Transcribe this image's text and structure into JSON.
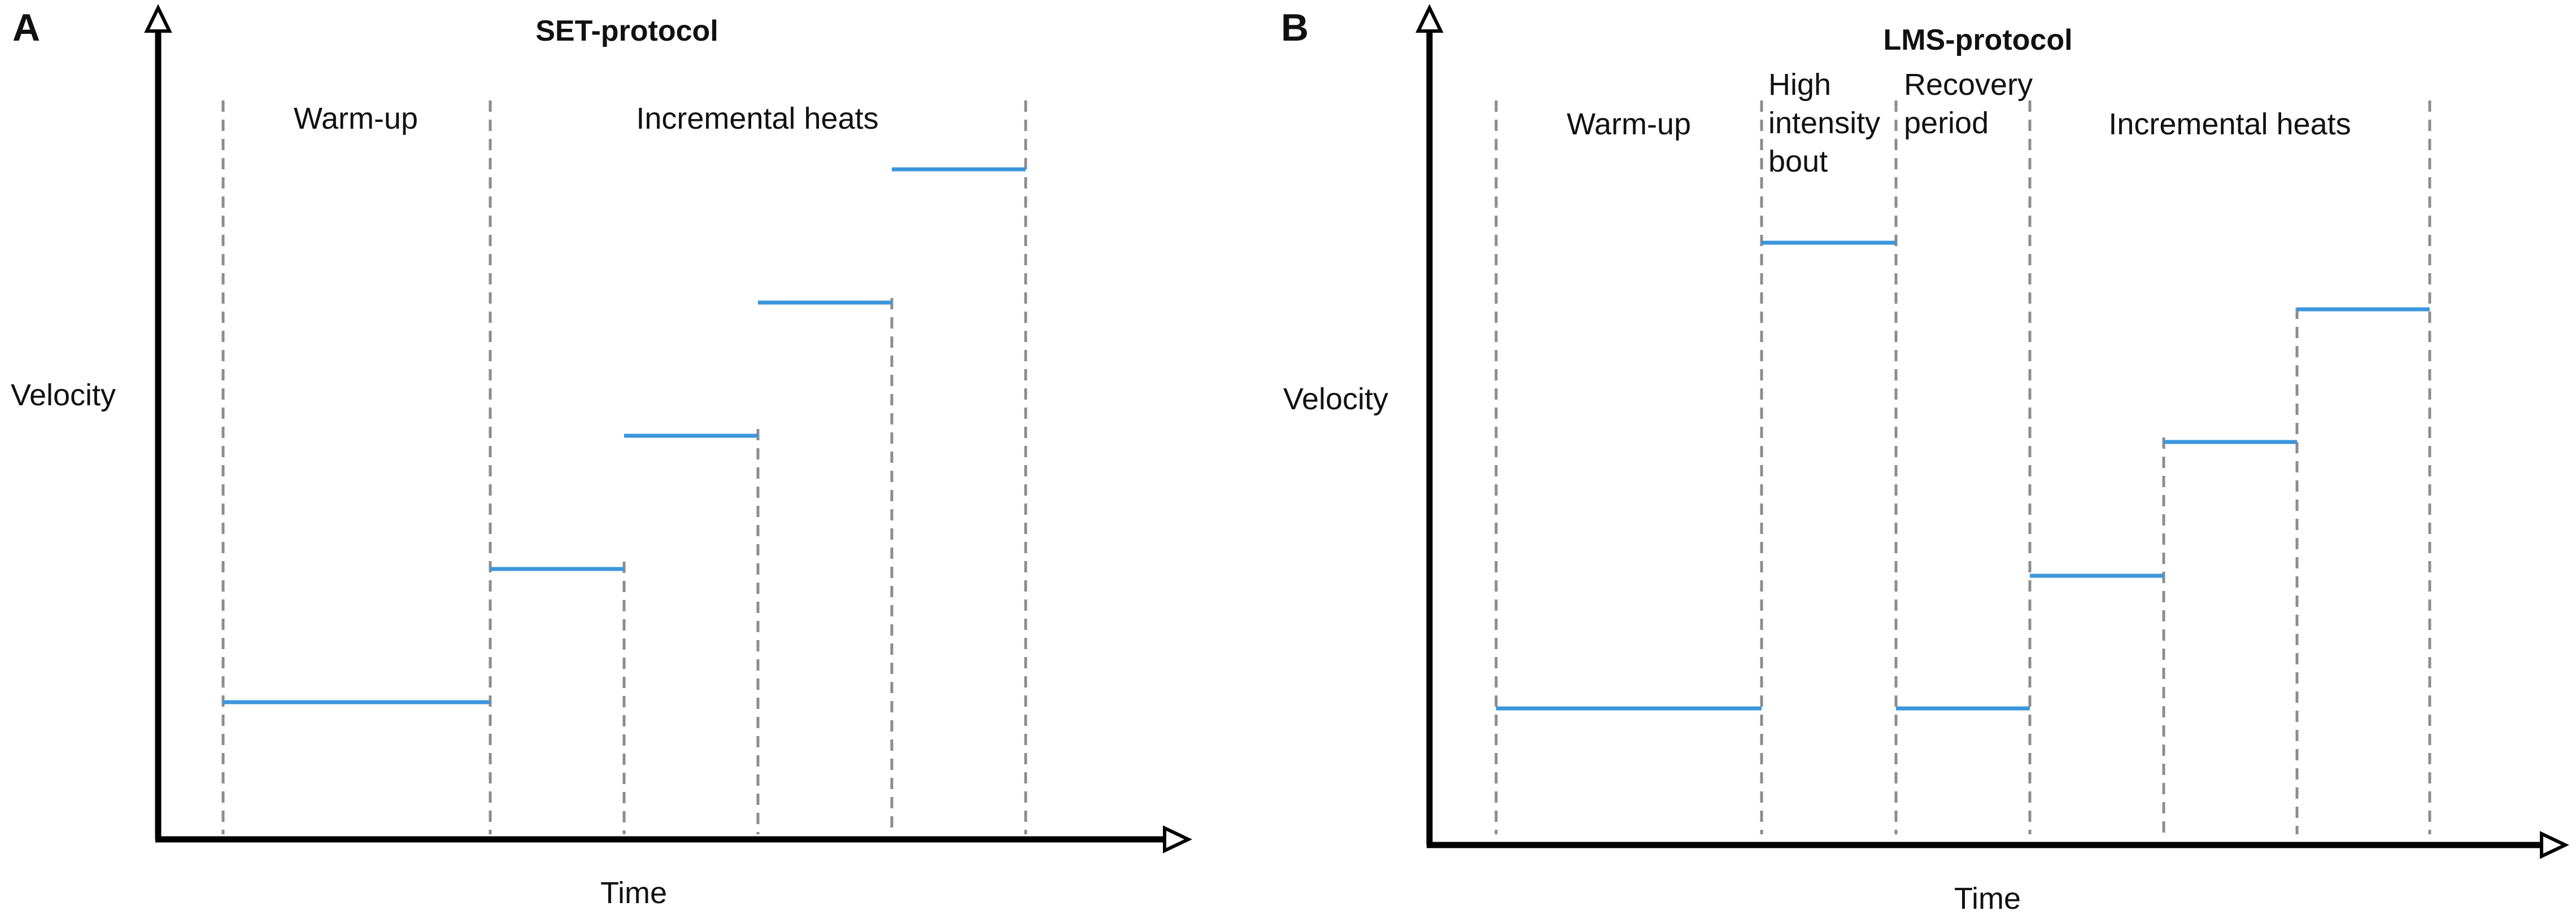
{
  "colors": {
    "step": "#3c96dc",
    "divider": "#8c8c8c",
    "axis": "#000000",
    "text": "#111111"
  },
  "panels": [
    {
      "letter": "A",
      "title": "SET-protocol",
      "y_axis_label": "Velocity",
      "x_axis_label": "Time",
      "phases": [
        {
          "lines": [
            "Warm-up"
          ]
        },
        {
          "lines": [
            "Incremental heats"
          ]
        }
      ],
      "steps": [
        1,
        2,
        3,
        4,
        5
      ]
    },
    {
      "letter": "B",
      "title": "LMS-protocol",
      "y_axis_label": "Velocity",
      "x_axis_label": "Time",
      "phases": [
        {
          "lines": [
            "Warm-up"
          ]
        },
        {
          "lines": [
            "High",
            "intensity",
            "bout"
          ]
        },
        {
          "lines": [
            "Recovery",
            "period"
          ]
        },
        {
          "lines": [
            "Incremental heats"
          ]
        }
      ],
      "steps": [
        1,
        5,
        1,
        2,
        3,
        4
      ]
    }
  ]
}
